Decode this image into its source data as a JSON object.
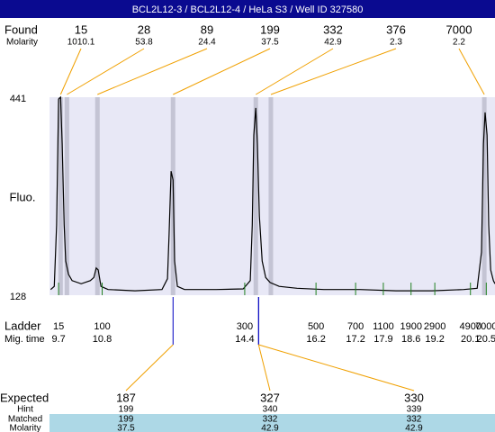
{
  "chart_data": {
    "type": "electropherogram",
    "title": "BCL2L12-3 / BCL2L12-4 / HeLa S3 / Well ID 327580",
    "y_label": "Fluo.",
    "ylim": [
      128,
      441
    ],
    "yticks": [
      441,
      128
    ],
    "xlim": [
      9.47,
      20.72
    ],
    "trace_color": "#000000",
    "background_color": "#e8e8f6",
    "band_color": "#c4c4d4",
    "link_color": "#f0a000",
    "ladder_color": "#208020",
    "expected_color": "#0000c0",
    "trace": {
      "x": [
        9.5,
        9.59,
        9.65,
        9.7,
        9.75,
        9.79,
        9.84,
        9.88,
        9.95,
        10.04,
        10.27,
        10.5,
        10.59,
        10.65,
        10.7,
        10.77,
        10.95,
        11.63,
        12.31,
        12.45,
        12.49,
        12.54,
        12.59,
        12.63,
        12.7,
        12.88,
        13.68,
        14.36,
        14.54,
        14.59,
        14.63,
        14.68,
        14.72,
        14.77,
        14.84,
        14.93,
        15.04,
        15.27,
        15.72,
        16.4,
        17.31,
        18.22,
        19.13,
        19.93,
        20.27,
        20.38,
        20.43,
        20.47,
        20.52,
        20.56,
        20.61,
        20.68,
        20.72
      ],
      "values": [
        137,
        142,
        239,
        438,
        441,
        367,
        239,
        182,
        161,
        151,
        146,
        151,
        156,
        171,
        168,
        142,
        137,
        135,
        137,
        154,
        225,
        324,
        310,
        182,
        142,
        137,
        137,
        138,
        151,
        239,
        381,
        424,
        367,
        253,
        182,
        156,
        148,
        142,
        139,
        137,
        137,
        135,
        135,
        137,
        139,
        196,
        367,
        417,
        381,
        239,
        168,
        151,
        146
      ]
    },
    "found": {
      "label": "Found",
      "molarity_label": "Molarity",
      "sizes": [
        15,
        28,
        89,
        199,
        332,
        376,
        7000
      ],
      "molarity": [
        1010.1,
        53.8,
        24.4,
        37.5,
        42.9,
        2.3,
        2.2
      ],
      "times": [
        9.75,
        9.91,
        10.68,
        12.59,
        14.68,
        15.06,
        20.45
      ]
    },
    "ladder": {
      "label": "Ladder",
      "time_label": "Mig. time",
      "sizes": [
        15,
        100,
        300,
        500,
        700,
        1100,
        1900,
        2900,
        4900,
        7000
      ],
      "times": [
        9.7,
        10.8,
        14.4,
        16.2,
        17.2,
        17.9,
        18.6,
        19.2,
        20.1,
        20.5
      ]
    },
    "expected": {
      "label": "Expected",
      "hint_label": "Hint",
      "matched_label": "Matched",
      "molarity_label": "Molarity",
      "sizes": [
        187,
        327,
        330
      ],
      "hint": [
        199,
        340,
        339
      ],
      "matched": [
        199,
        332,
        332
      ],
      "molarity": [
        37.5,
        42.9,
        42.9
      ],
      "times": [
        12.59,
        14.75,
        14.75
      ]
    }
  }
}
